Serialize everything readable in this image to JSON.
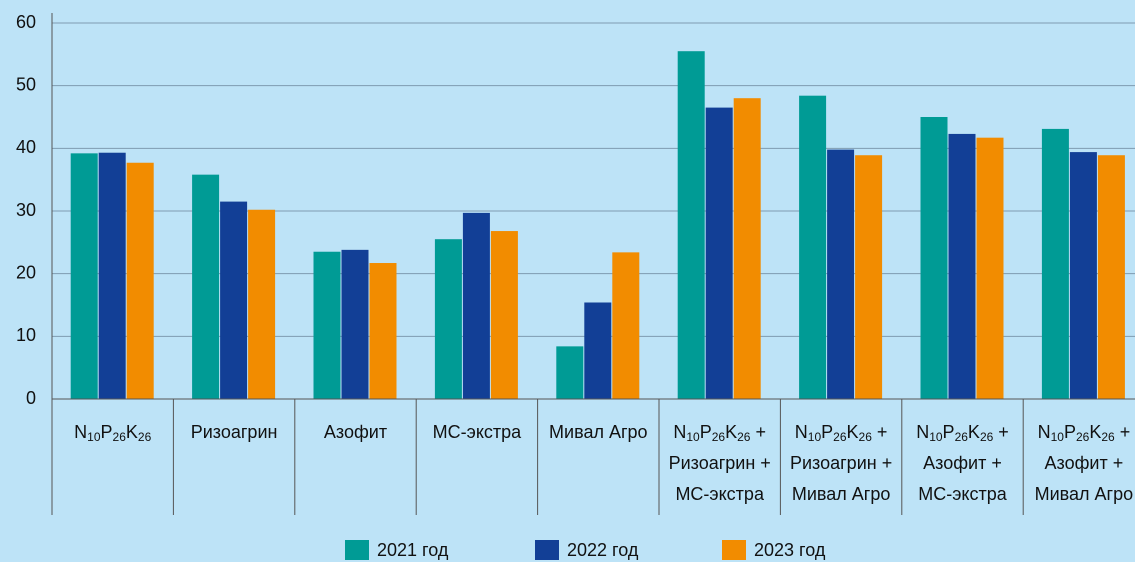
{
  "chart_data": {
    "type": "bar",
    "categories": [
      [
        "N10P26K26"
      ],
      [
        "Ризоагрин"
      ],
      [
        "Азофит"
      ],
      [
        "МС-экстра"
      ],
      [
        "Мивал Агро"
      ],
      [
        "N10P26K26 +",
        "Ризоагрин +",
        "МС-экстра"
      ],
      [
        "N10P26K26 +",
        "Ризоагрин +",
        "Мивал Агро"
      ],
      [
        "N10P26K26 +",
        "Азофит +",
        "МС-экстра"
      ],
      [
        "N10P26K26 +",
        "Азофит +",
        "Мивал Агро"
      ]
    ],
    "series": [
      {
        "name": "2021 год",
        "color": "#009b95",
        "values": [
          39.2,
          35.8,
          23.5,
          25.5,
          8.4,
          55.5,
          48.4,
          45.0,
          43.1
        ]
      },
      {
        "name": "2022 год",
        "color": "#123f96",
        "values": [
          39.3,
          31.5,
          23.8,
          29.7,
          15.4,
          46.5,
          39.8,
          42.3,
          39.4
        ]
      },
      {
        "name": "2023 год",
        "color": "#f28c00",
        "values": [
          37.7,
          30.2,
          21.7,
          26.8,
          23.4,
          48.0,
          38.9,
          41.7,
          38.9
        ]
      }
    ],
    "ylim": [
      0,
      60
    ],
    "yticks": [
      0,
      10,
      20,
      30,
      40,
      50,
      60
    ],
    "grid": true
  }
}
